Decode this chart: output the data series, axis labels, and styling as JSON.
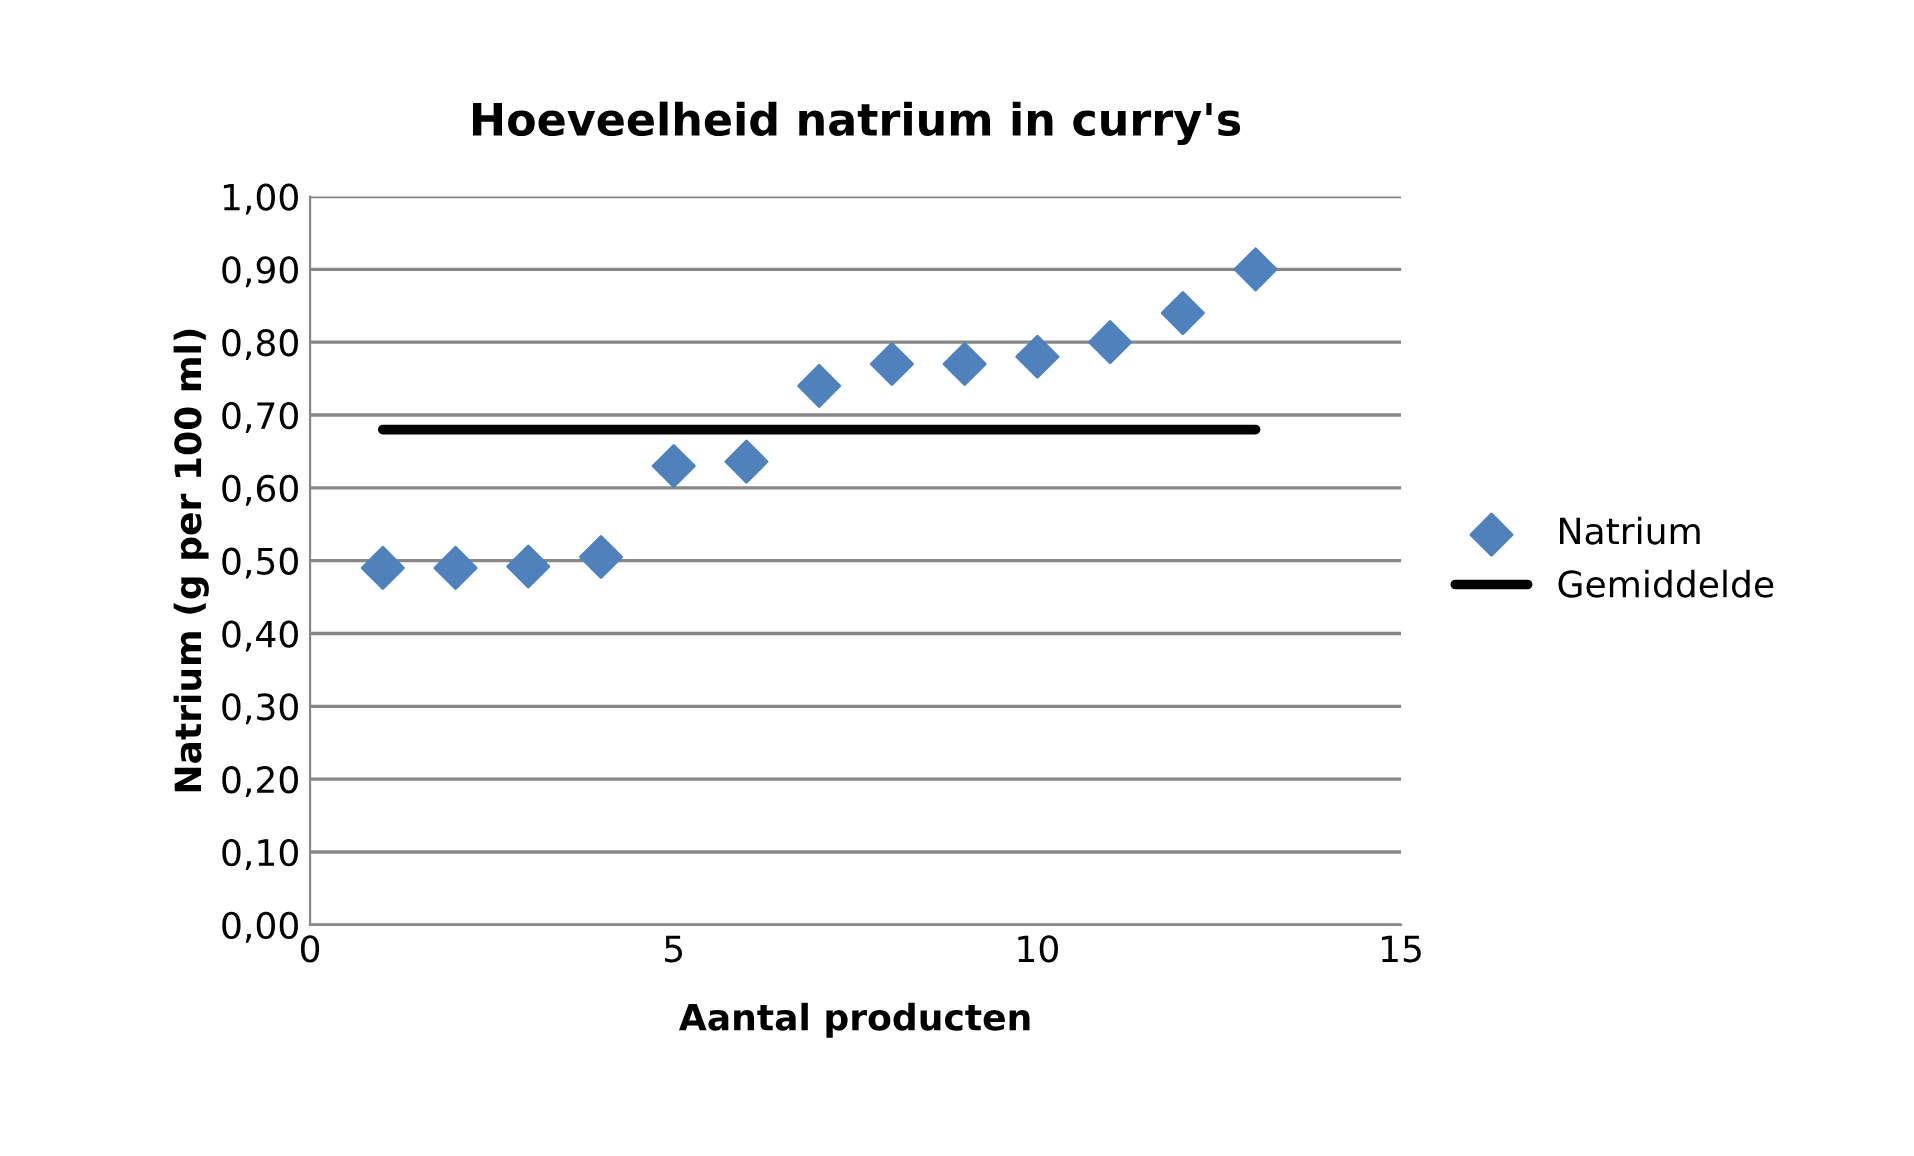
{
  "chart_data": {
    "type": "scatter",
    "title": "Hoeveelheid natrium in curry's",
    "xlabel": "Aantal producten",
    "ylabel": "Natrium (g per 100 ml)",
    "series": [
      {
        "name": "Natrium",
        "color": "#4f81bd",
        "marker": "diamond",
        "x": [
          1,
          2,
          3,
          4,
          5,
          6,
          7,
          8,
          9,
          10,
          11,
          12,
          13
        ],
        "values": [
          0.49,
          0.49,
          0.492,
          0.505,
          0.63,
          0.636,
          0.74,
          0.77,
          0.77,
          0.78,
          0.8,
          0.84,
          0.9
        ]
      },
      {
        "name": "Gemiddelde",
        "type": "line",
        "color": "#000000",
        "marker": "none",
        "line_style": "solid",
        "x": [
          1,
          13
        ],
        "values": [
          0.68,
          0.68
        ]
      }
    ],
    "xlim": [
      0,
      15
    ],
    "xticks": [
      0,
      5,
      10,
      15
    ],
    "ylim": [
      0,
      1
    ],
    "yticks": [
      {
        "value": 0,
        "label": "0,00"
      },
      {
        "value": 0.1,
        "label": "0,10"
      },
      {
        "value": 0.2,
        "label": "0,20"
      },
      {
        "value": 0.3,
        "label": "0,30"
      },
      {
        "value": 0.4,
        "label": "0,40"
      },
      {
        "value": 0.5,
        "label": "0,50"
      },
      {
        "value": 0.6,
        "label": "0,60"
      },
      {
        "value": 0.7,
        "label": "0,70"
      },
      {
        "value": 0.8,
        "label": "0,80"
      },
      {
        "value": 0.9,
        "label": "0,90"
      },
      {
        "value": 1,
        "label": "1,00"
      }
    ],
    "grid": "y",
    "legend": "right"
  }
}
